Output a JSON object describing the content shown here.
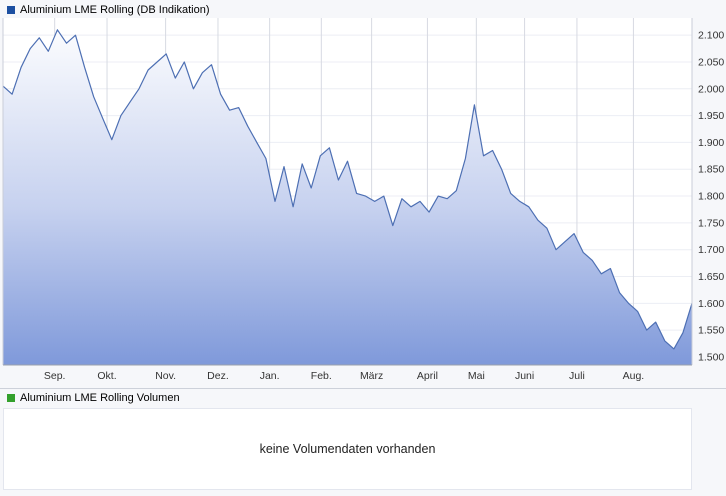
{
  "page": {
    "background": "#f6f7fa"
  },
  "price_panel": {
    "legend": {
      "label": "Aluminium LME Rolling (DB Indikation)",
      "color": "#1c4fa1"
    }
  },
  "volume_panel": {
    "legend": {
      "label": "Aluminium LME Rolling Volumen",
      "color": "#33a02c"
    },
    "message": "keine Volumendaten vorhanden"
  },
  "chart_data": {
    "type": "area",
    "title": "Aluminium LME Rolling (DB Indikation)",
    "xlabel": "",
    "ylabel": "",
    "ylim": [
      1485,
      2132
    ],
    "grid": true,
    "legend_position": "top-left",
    "line_color": "#4d6fb3",
    "fill_top": "#ffffff",
    "fill_bottom": "#7f99da",
    "x_ticks": [
      {
        "label": "Sep.",
        "pos": 0.075
      },
      {
        "label": "Okt.",
        "pos": 0.151
      },
      {
        "label": "Nov.",
        "pos": 0.236
      },
      {
        "label": "Dez.",
        "pos": 0.312
      },
      {
        "label": "Jan.",
        "pos": 0.387
      },
      {
        "label": "Feb.",
        "pos": 0.462
      },
      {
        "label": "März",
        "pos": 0.535
      },
      {
        "label": "April",
        "pos": 0.616
      },
      {
        "label": "Mai",
        "pos": 0.687
      },
      {
        "label": "Juni",
        "pos": 0.757
      },
      {
        "label": "Juli",
        "pos": 0.833
      },
      {
        "label": "Aug.",
        "pos": 0.915
      }
    ],
    "y_ticks": [
      {
        "value": 2100,
        "label": "2.100"
      },
      {
        "value": 2050,
        "label": "2.050"
      },
      {
        "value": 2000,
        "label": "2.000"
      },
      {
        "value": 1950,
        "label": "1.950"
      },
      {
        "value": 1900,
        "label": "1.900"
      },
      {
        "value": 1850,
        "label": "1.850"
      },
      {
        "value": 1800,
        "label": "1.800"
      },
      {
        "value": 1750,
        "label": "1.750"
      },
      {
        "value": 1700,
        "label": "1.700"
      },
      {
        "value": 1650,
        "label": "1.650"
      },
      {
        "value": 1600,
        "label": "1.600"
      },
      {
        "value": 1550,
        "label": "1.550"
      },
      {
        "value": 1500,
        "label": "1.500"
      }
    ],
    "series": [
      {
        "name": "Aluminium LME Rolling (DB Indikation)",
        "values": [
          2005,
          1990,
          2040,
          2075,
          2095,
          2070,
          2110,
          2085,
          2100,
          2040,
          1985,
          1945,
          1905,
          1950,
          1975,
          2000,
          2035,
          2050,
          2065,
          2020,
          2050,
          2000,
          2030,
          2045,
          1990,
          1960,
          1965,
          1930,
          1900,
          1870,
          1790,
          1855,
          1780,
          1860,
          1815,
          1875,
          1890,
          1830,
          1865,
          1805,
          1800,
          1790,
          1800,
          1745,
          1795,
          1780,
          1790,
          1770,
          1800,
          1795,
          1810,
          1870,
          1970,
          1875,
          1885,
          1850,
          1805,
          1790,
          1780,
          1755,
          1740,
          1700,
          1715,
          1730,
          1695,
          1680,
          1655,
          1665,
          1620,
          1600,
          1585,
          1550,
          1565,
          1530,
          1515,
          1545,
          1600
        ]
      }
    ]
  }
}
